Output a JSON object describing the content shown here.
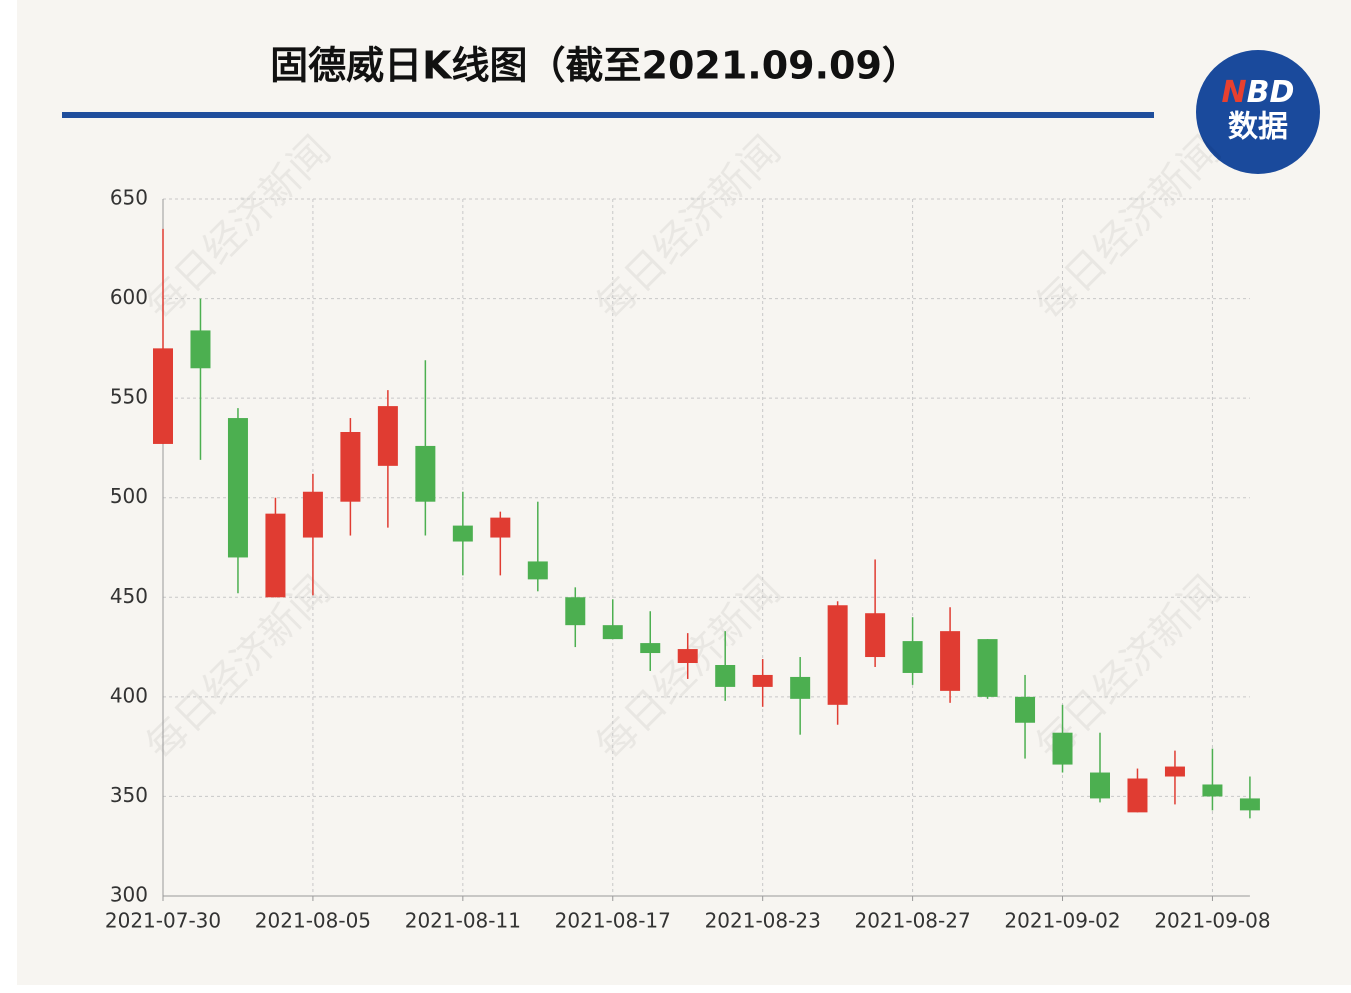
{
  "chart_data": {
    "type": "candlestick",
    "title": "固德威日K线图（截至2021.09.09）",
    "watermark": "每日经济新闻",
    "logo": {
      "accent": "N",
      "rest": "BD",
      "sub": "数据"
    },
    "categories": [
      "2021-07-30",
      null,
      null,
      null,
      "2021-08-05",
      null,
      null,
      null,
      "2021-08-11",
      null,
      null,
      null,
      "2021-08-17",
      null,
      null,
      null,
      "2021-08-23",
      null,
      null,
      null,
      "2021-08-27",
      null,
      null,
      null,
      "2021-09-02",
      null,
      null,
      null,
      "2021-09-08",
      null
    ],
    "open": [
      527,
      584,
      540,
      450,
      480,
      498,
      516,
      526,
      486,
      480,
      468,
      450,
      436,
      427,
      417,
      416,
      405,
      410,
      396,
      420,
      428,
      403,
      429,
      400,
      382,
      362,
      342,
      360,
      356,
      349
    ],
    "close": [
      575,
      565,
      470,
      492,
      503,
      533,
      546,
      498,
      478,
      490,
      459,
      436,
      429,
      422,
      424,
      405,
      411,
      399,
      446,
      442,
      412,
      433,
      400,
      387,
      366,
      349,
      359,
      365,
      350,
      343
    ],
    "high": [
      635,
      600,
      545,
      500,
      512,
      540,
      554,
      569,
      503,
      493,
      498,
      455,
      449,
      443,
      432,
      433,
      419,
      420,
      448,
      469,
      440,
      445,
      429,
      411,
      396,
      382,
      364,
      373,
      374,
      360
    ],
    "low": [
      527,
      519,
      452,
      450,
      451,
      481,
      485,
      481,
      461,
      461,
      453,
      425,
      429,
      413,
      409,
      398,
      395,
      381,
      386,
      415,
      406,
      397,
      399,
      369,
      362,
      347,
      342,
      346,
      343,
      339
    ],
    "up_color": "#e03c32",
    "down_color": "#4caf50",
    "ylim": [
      300,
      650
    ],
    "yticks": [
      300,
      350,
      400,
      450,
      500,
      550,
      600,
      650
    ],
    "grid": true
  }
}
